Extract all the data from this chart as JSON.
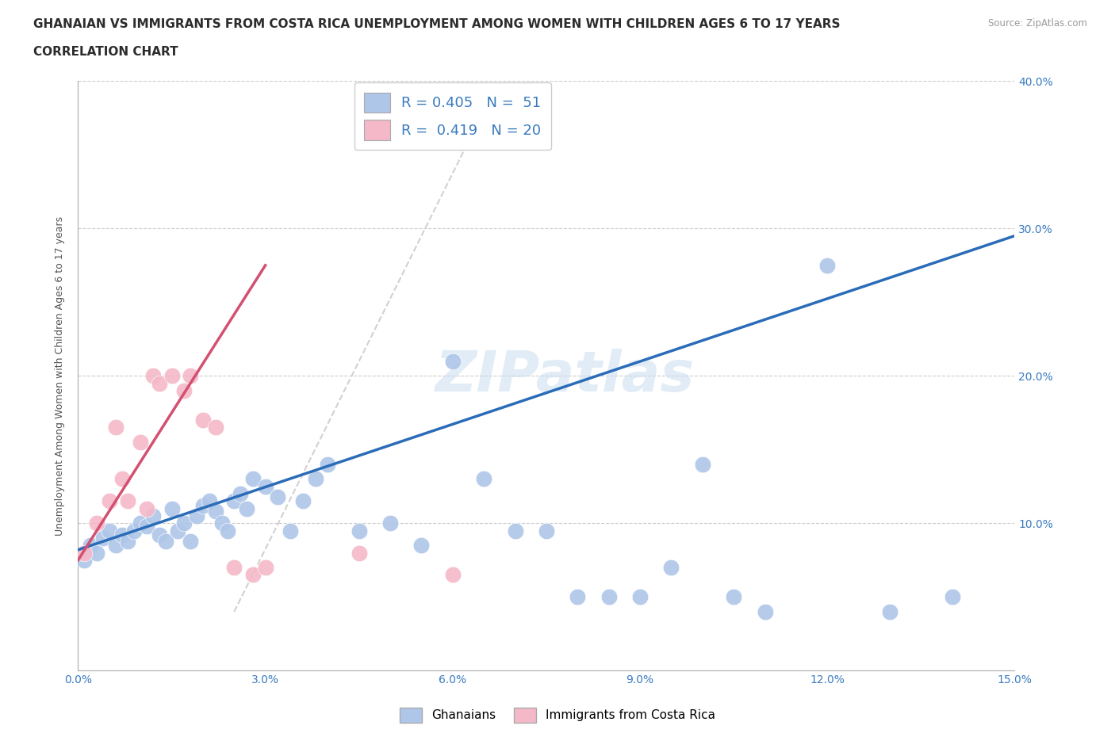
{
  "title_line1": "GHANAIAN VS IMMIGRANTS FROM COSTA RICA UNEMPLOYMENT AMONG WOMEN WITH CHILDREN AGES 6 TO 17 YEARS",
  "title_line2": "CORRELATION CHART",
  "source": "Source: ZipAtlas.com",
  "ylabel": "Unemployment Among Women with Children Ages 6 to 17 years",
  "xlim": [
    0,
    0.15
  ],
  "ylim": [
    0,
    0.4
  ],
  "xticks": [
    0.0,
    0.03,
    0.06,
    0.09,
    0.12,
    0.15
  ],
  "yticks": [
    0.0,
    0.1,
    0.2,
    0.3,
    0.4
  ],
  "xtick_labels": [
    "0.0%",
    "3.0%",
    "6.0%",
    "9.0%",
    "12.0%",
    "15.0%"
  ],
  "ytick_labels": [
    "",
    "10.0%",
    "20.0%",
    "30.0%",
    "40.0%"
  ],
  "blue_color": "#aec6e8",
  "pink_color": "#f4b8c8",
  "blue_line_color": "#2b6cb8",
  "pink_line_color": "#d45070",
  "ref_line_color": "#cccccc",
  "watermark": "ZIPatlas",
  "blue_scatter_x": [
    0.001,
    0.002,
    0.003,
    0.004,
    0.005,
    0.006,
    0.007,
    0.008,
    0.009,
    0.01,
    0.011,
    0.012,
    0.013,
    0.014,
    0.015,
    0.016,
    0.017,
    0.018,
    0.019,
    0.02,
    0.021,
    0.022,
    0.023,
    0.024,
    0.025,
    0.026,
    0.027,
    0.028,
    0.03,
    0.032,
    0.034,
    0.036,
    0.038,
    0.04,
    0.045,
    0.05,
    0.055,
    0.06,
    0.065,
    0.07,
    0.075,
    0.08,
    0.085,
    0.09,
    0.095,
    0.1,
    0.105,
    0.11,
    0.12,
    0.13,
    0.14
  ],
  "blue_scatter_y": [
    0.075,
    0.085,
    0.08,
    0.09,
    0.095,
    0.085,
    0.092,
    0.088,
    0.095,
    0.1,
    0.098,
    0.105,
    0.092,
    0.088,
    0.11,
    0.095,
    0.1,
    0.088,
    0.105,
    0.112,
    0.115,
    0.108,
    0.1,
    0.095,
    0.115,
    0.12,
    0.11,
    0.13,
    0.125,
    0.118,
    0.095,
    0.115,
    0.13,
    0.14,
    0.095,
    0.1,
    0.085,
    0.21,
    0.13,
    0.095,
    0.095,
    0.05,
    0.05,
    0.05,
    0.07,
    0.14,
    0.05,
    0.04,
    0.275,
    0.04,
    0.05
  ],
  "pink_scatter_x": [
    0.001,
    0.003,
    0.005,
    0.006,
    0.007,
    0.008,
    0.01,
    0.011,
    0.012,
    0.013,
    0.015,
    0.017,
    0.018,
    0.02,
    0.022,
    0.025,
    0.028,
    0.03,
    0.045,
    0.06
  ],
  "pink_scatter_y": [
    0.08,
    0.1,
    0.115,
    0.165,
    0.13,
    0.115,
    0.155,
    0.11,
    0.2,
    0.195,
    0.2,
    0.19,
    0.2,
    0.17,
    0.165,
    0.07,
    0.065,
    0.07,
    0.08,
    0.065
  ],
  "blue_line_x0": 0.0,
  "blue_line_y0": 0.082,
  "blue_line_x1": 0.15,
  "blue_line_y1": 0.295,
  "pink_line_x0": 0.0,
  "pink_line_y0": 0.075,
  "pink_line_x1": 0.03,
  "pink_line_y1": 0.275,
  "ref_line_x0": 0.025,
  "ref_line_y0": 0.04,
  "ref_line_x1": 0.065,
  "ref_line_y1": 0.38,
  "legend_text1": "R = 0.405   N =  51",
  "legend_text2": "R =  0.419   N = 20"
}
